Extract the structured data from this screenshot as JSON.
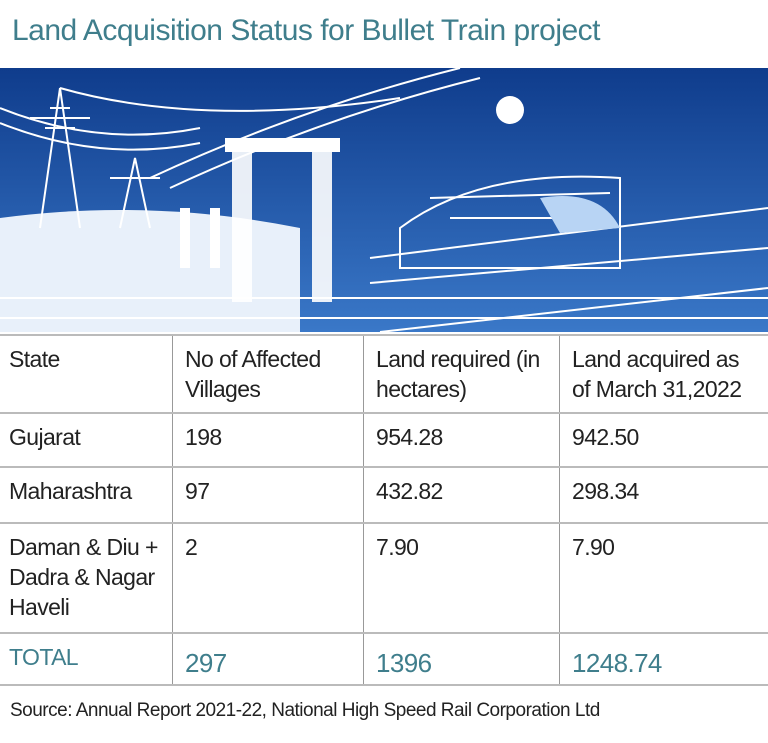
{
  "title": "Land Acquisition Status for Bullet Train project",
  "table": {
    "headers": [
      "State",
      "No of Affected Villages",
      "Land required (in hectares)",
      "Land acquired as of March 31,2022"
    ],
    "rows": [
      [
        "Gujarat",
        "198",
        "954.28",
        "942.50"
      ],
      [
        "Maharashtra",
        "97",
        "432.82",
        "298.34"
      ],
      [
        "Daman & Diu + Dadra & Nagar Haveli",
        "2",
        "7.90",
        "7.90"
      ]
    ],
    "total": [
      "TOTAL",
      "297",
      "1396",
      "1248.74"
    ]
  },
  "source": "Source: Annual Report 2021-22, National High Speed Rail Corporation Ltd",
  "colors": {
    "accent": "#3f7e8c",
    "illustration": "#1f4fa0"
  }
}
